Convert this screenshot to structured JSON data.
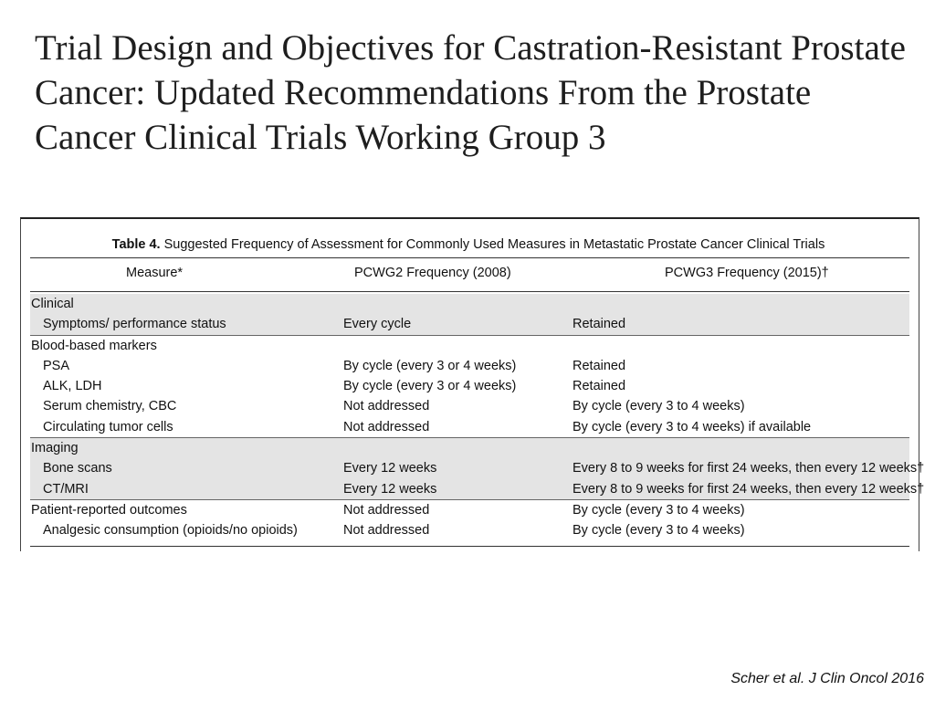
{
  "slide": {
    "title_lines": [
      "Trial Design and Objectives for Castration-Resistant Prostate",
      "Cancer: Updated Recommendations From the Prostate",
      "Cancer Clinical Trials Working Group 3"
    ],
    "citation": "Scher et al. J Clin Oncol 2016"
  },
  "table": {
    "caption_label": "Table 4.",
    "caption_text": "Suggested Frequency of Assessment for Commonly Used Measures in Metastatic Prostate Cancer Clinical Trials",
    "headers": [
      "Measure*",
      "PCWG2 Frequency (2008)",
      "PCWG3 Frequency (2015)†"
    ],
    "rows": [
      {
        "measure": "Clinical",
        "pcwg2": "",
        "pcwg3": "",
        "group": true,
        "shaded": true
      },
      {
        "measure": "Symptoms/ performance status",
        "pcwg2": "Every cycle",
        "pcwg3": "Retained",
        "group": false,
        "shaded": true
      },
      {
        "measure": "Blood-based markers",
        "pcwg2": "",
        "pcwg3": "",
        "group": true,
        "shaded": false
      },
      {
        "measure": "PSA",
        "pcwg2": "By cycle (every 3 or 4 weeks)",
        "pcwg3": "Retained",
        "group": false,
        "shaded": false
      },
      {
        "measure": "ALK, LDH",
        "pcwg2": "By cycle (every 3 or 4 weeks)",
        "pcwg3": "Retained",
        "group": false,
        "shaded": false
      },
      {
        "measure": "Serum chemistry, CBC",
        "pcwg2": "Not addressed",
        "pcwg3": "By cycle (every 3 to 4 weeks)",
        "group": false,
        "shaded": false
      },
      {
        "measure": "Circulating tumor cells",
        "pcwg2": "Not addressed",
        "pcwg3": "By cycle (every 3 to 4 weeks) if available",
        "group": false,
        "shaded": false
      },
      {
        "measure": "Imaging",
        "pcwg2": "",
        "pcwg3": "",
        "group": true,
        "shaded": true
      },
      {
        "measure": "Bone scans",
        "pcwg2": "Every 12 weeks",
        "pcwg3": "Every 8 to 9 weeks for first 24 weeks, then every 12 weeks†",
        "group": false,
        "shaded": true
      },
      {
        "measure": "CT/MRI",
        "pcwg2": "Every 12 weeks",
        "pcwg3": "Every 8 to 9 weeks for first 24 weeks, then every 12 weeks†",
        "group": false,
        "shaded": true
      },
      {
        "measure": "Patient-reported outcomes",
        "pcwg2": "Not addressed",
        "pcwg3": "By cycle (every 3 to 4 weeks)",
        "group": true,
        "shaded": false
      },
      {
        "measure": "Analgesic consumption (opioids/no opioids)",
        "pcwg2": "Not addressed",
        "pcwg3": "By cycle (every 3 to 4 weeks)",
        "group": false,
        "shaded": false
      }
    ]
  }
}
